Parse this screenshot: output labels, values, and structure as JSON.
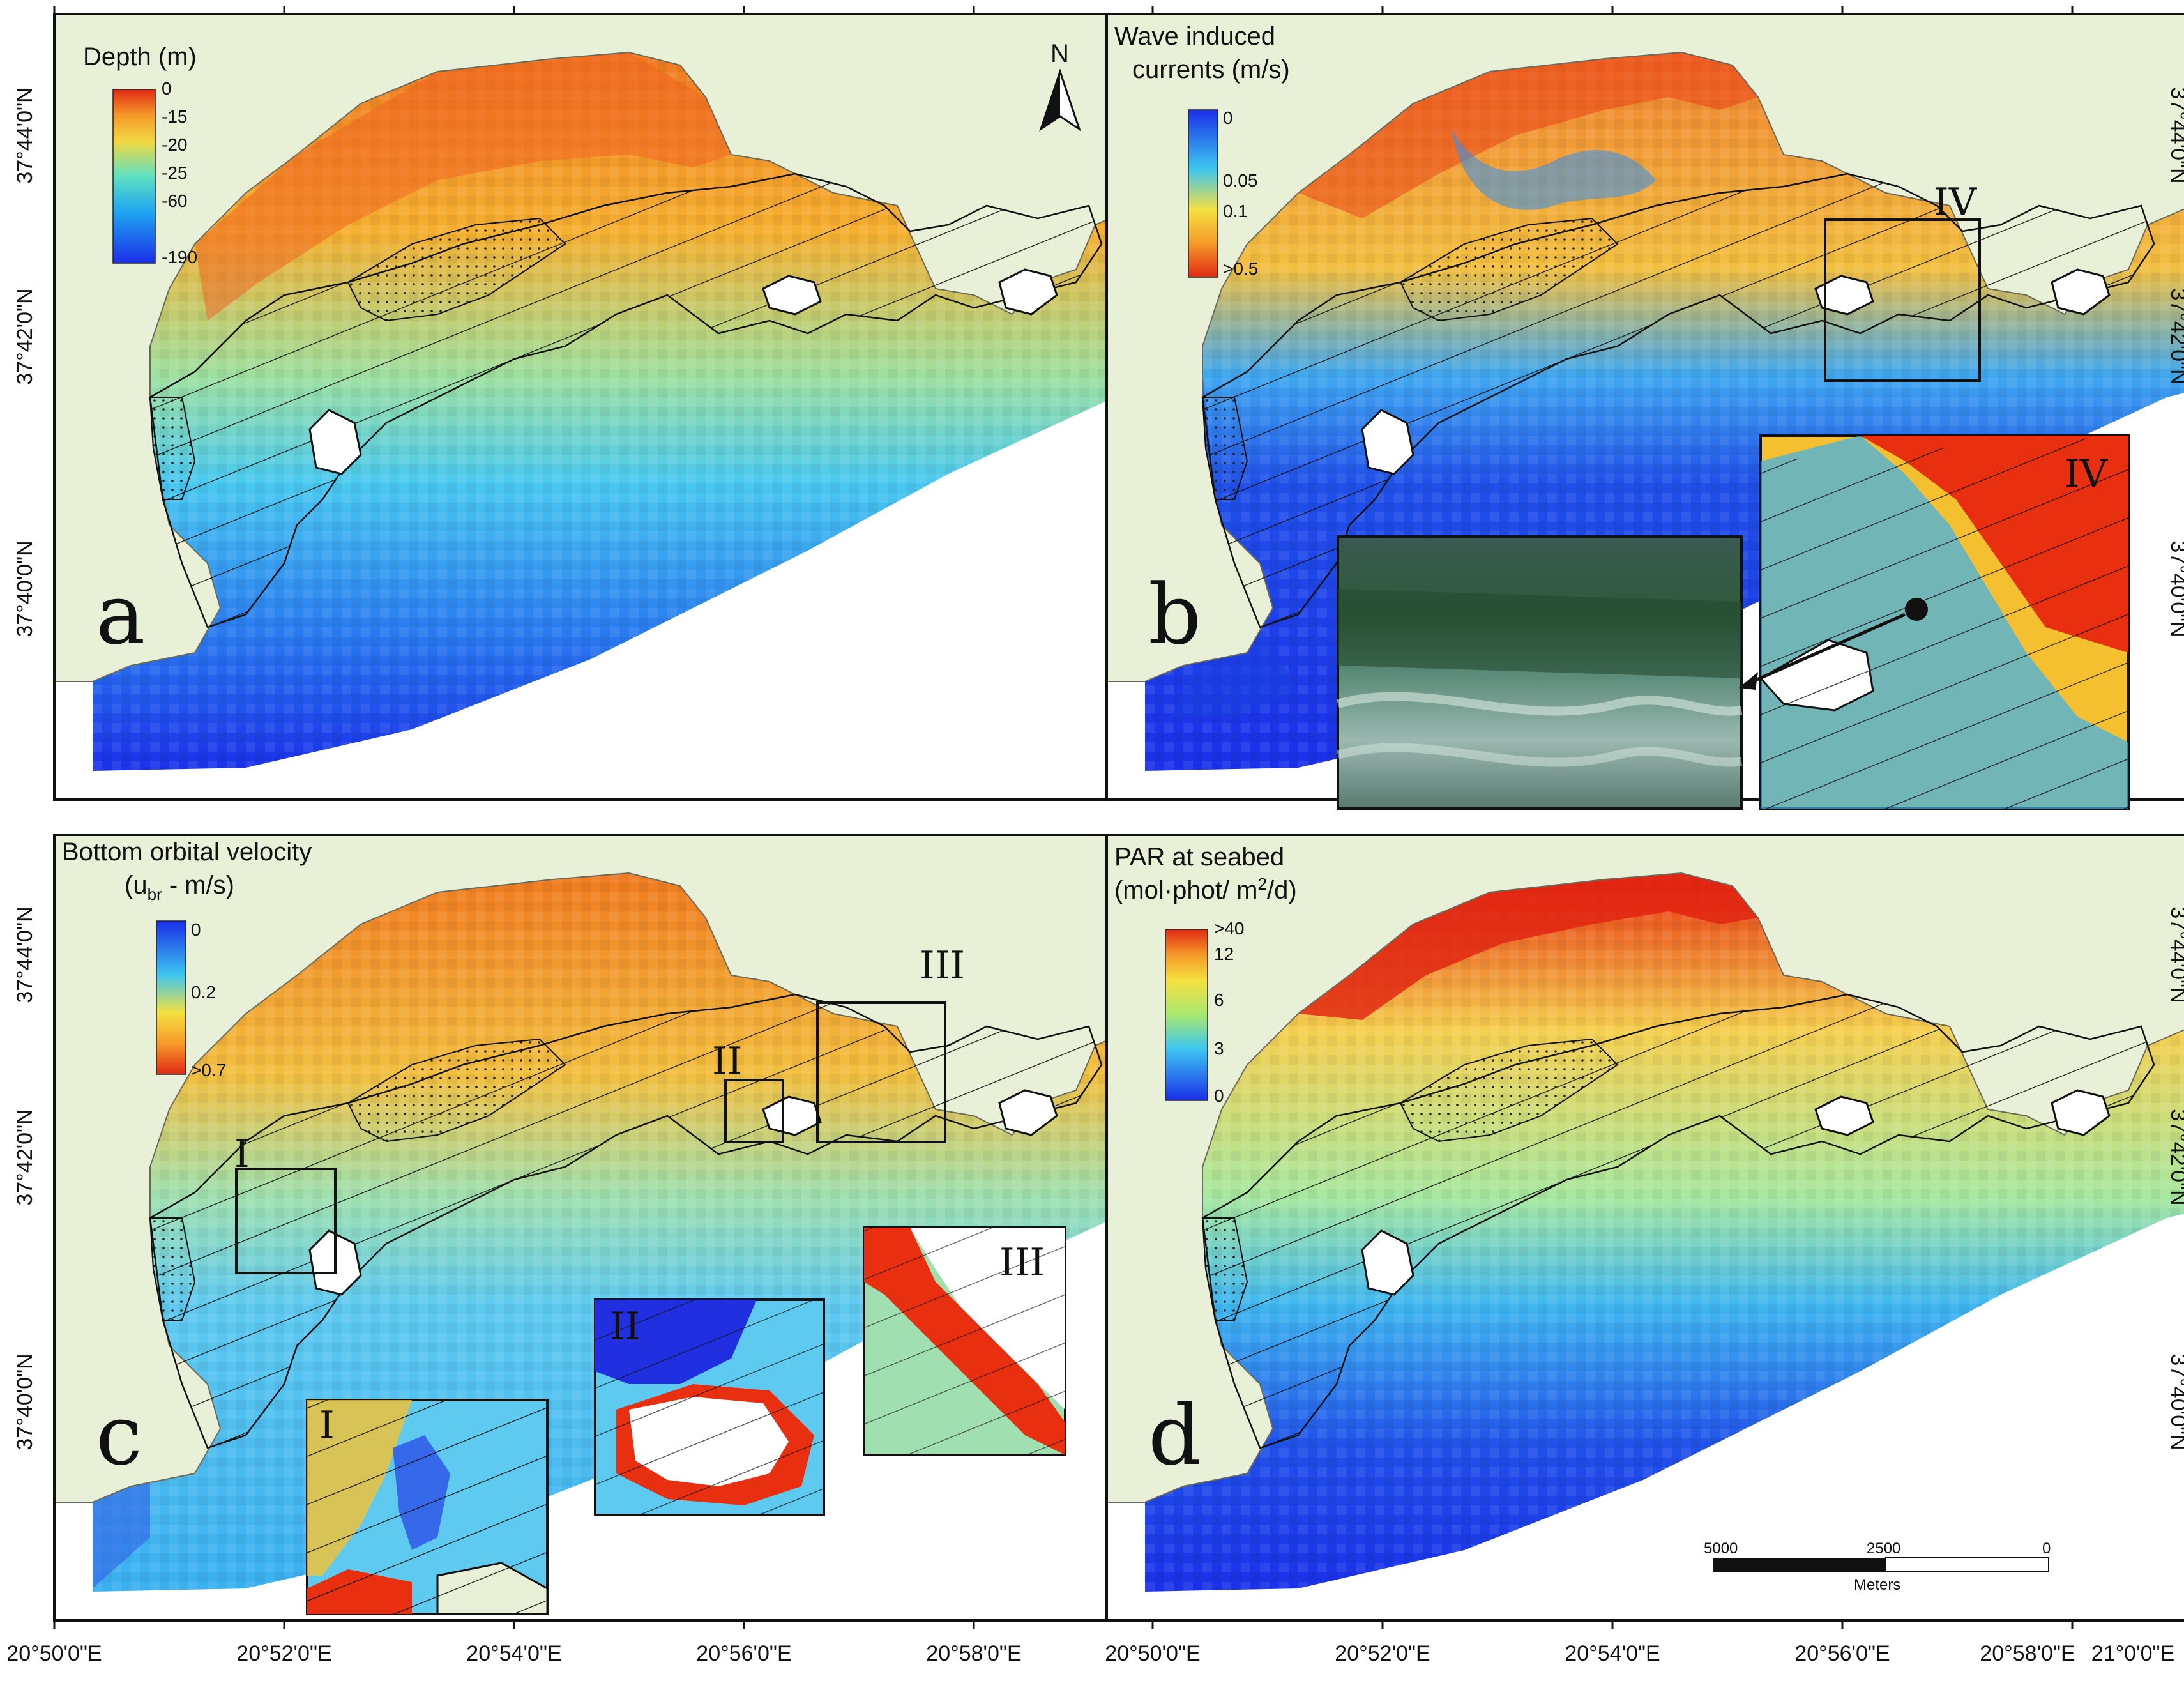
{
  "panels": {
    "a": {
      "letter": "a",
      "legend_title": "Depth (m)",
      "ticks": [
        "0",
        "-15",
        "-20",
        "-25",
        "-60",
        "-190"
      ]
    },
    "b": {
      "letter": "b",
      "legend_title_1": "Wave induced",
      "legend_title_2": "currents (m/s)",
      "ticks": [
        "0",
        "0.05",
        "0.1",
        ">0.5"
      ],
      "box_label": "IV",
      "inset_label": "IV"
    },
    "c": {
      "letter": "c",
      "legend_title_1": "Bottom orbital velocity",
      "legend_title_2": "(u",
      "legend_sub": "br",
      "legend_title_3": " - m/s)",
      "ticks": [
        "0",
        "0.2",
        ">0.7"
      ],
      "box_labels": [
        "I",
        "II",
        "III"
      ],
      "inset_labels": [
        "I",
        "II",
        "III"
      ]
    },
    "d": {
      "letter": "d",
      "legend_title_1": "PAR at seabed",
      "legend_title_2": "(mol·phot/ m",
      "legend_sup": "2",
      "legend_title_3": "/d)",
      "ticks": [
        ">40",
        "12",
        "6",
        "3",
        "0"
      ]
    }
  },
  "north_label": "N",
  "lat_labels": [
    "37°44'0\"N",
    "37°42'0\"N",
    "37°40'0\"N"
  ],
  "lon_labels_left": [
    "20°50'0\"E",
    "20°52'0\"E",
    "20°54'0\"E",
    "20°56'0\"E",
    "20°58'0\"E"
  ],
  "lon_labels_right": [
    "20°50'0\"E",
    "20°52'0\"E",
    "20°54'0\"E",
    "20°56'0\"E",
    "20°58'0\"E",
    "21°0'0\"E"
  ],
  "scale_bar": {
    "ticks": [
      "5000",
      "2500",
      "0"
    ],
    "unit": "Meters"
  },
  "colors": {
    "land": "#e8f0d8",
    "deep": "#1a33e6",
    "mid": "#3ad0f0",
    "shallow": "#f5c030",
    "coast": "#e03010",
    "frame": "#111111"
  }
}
